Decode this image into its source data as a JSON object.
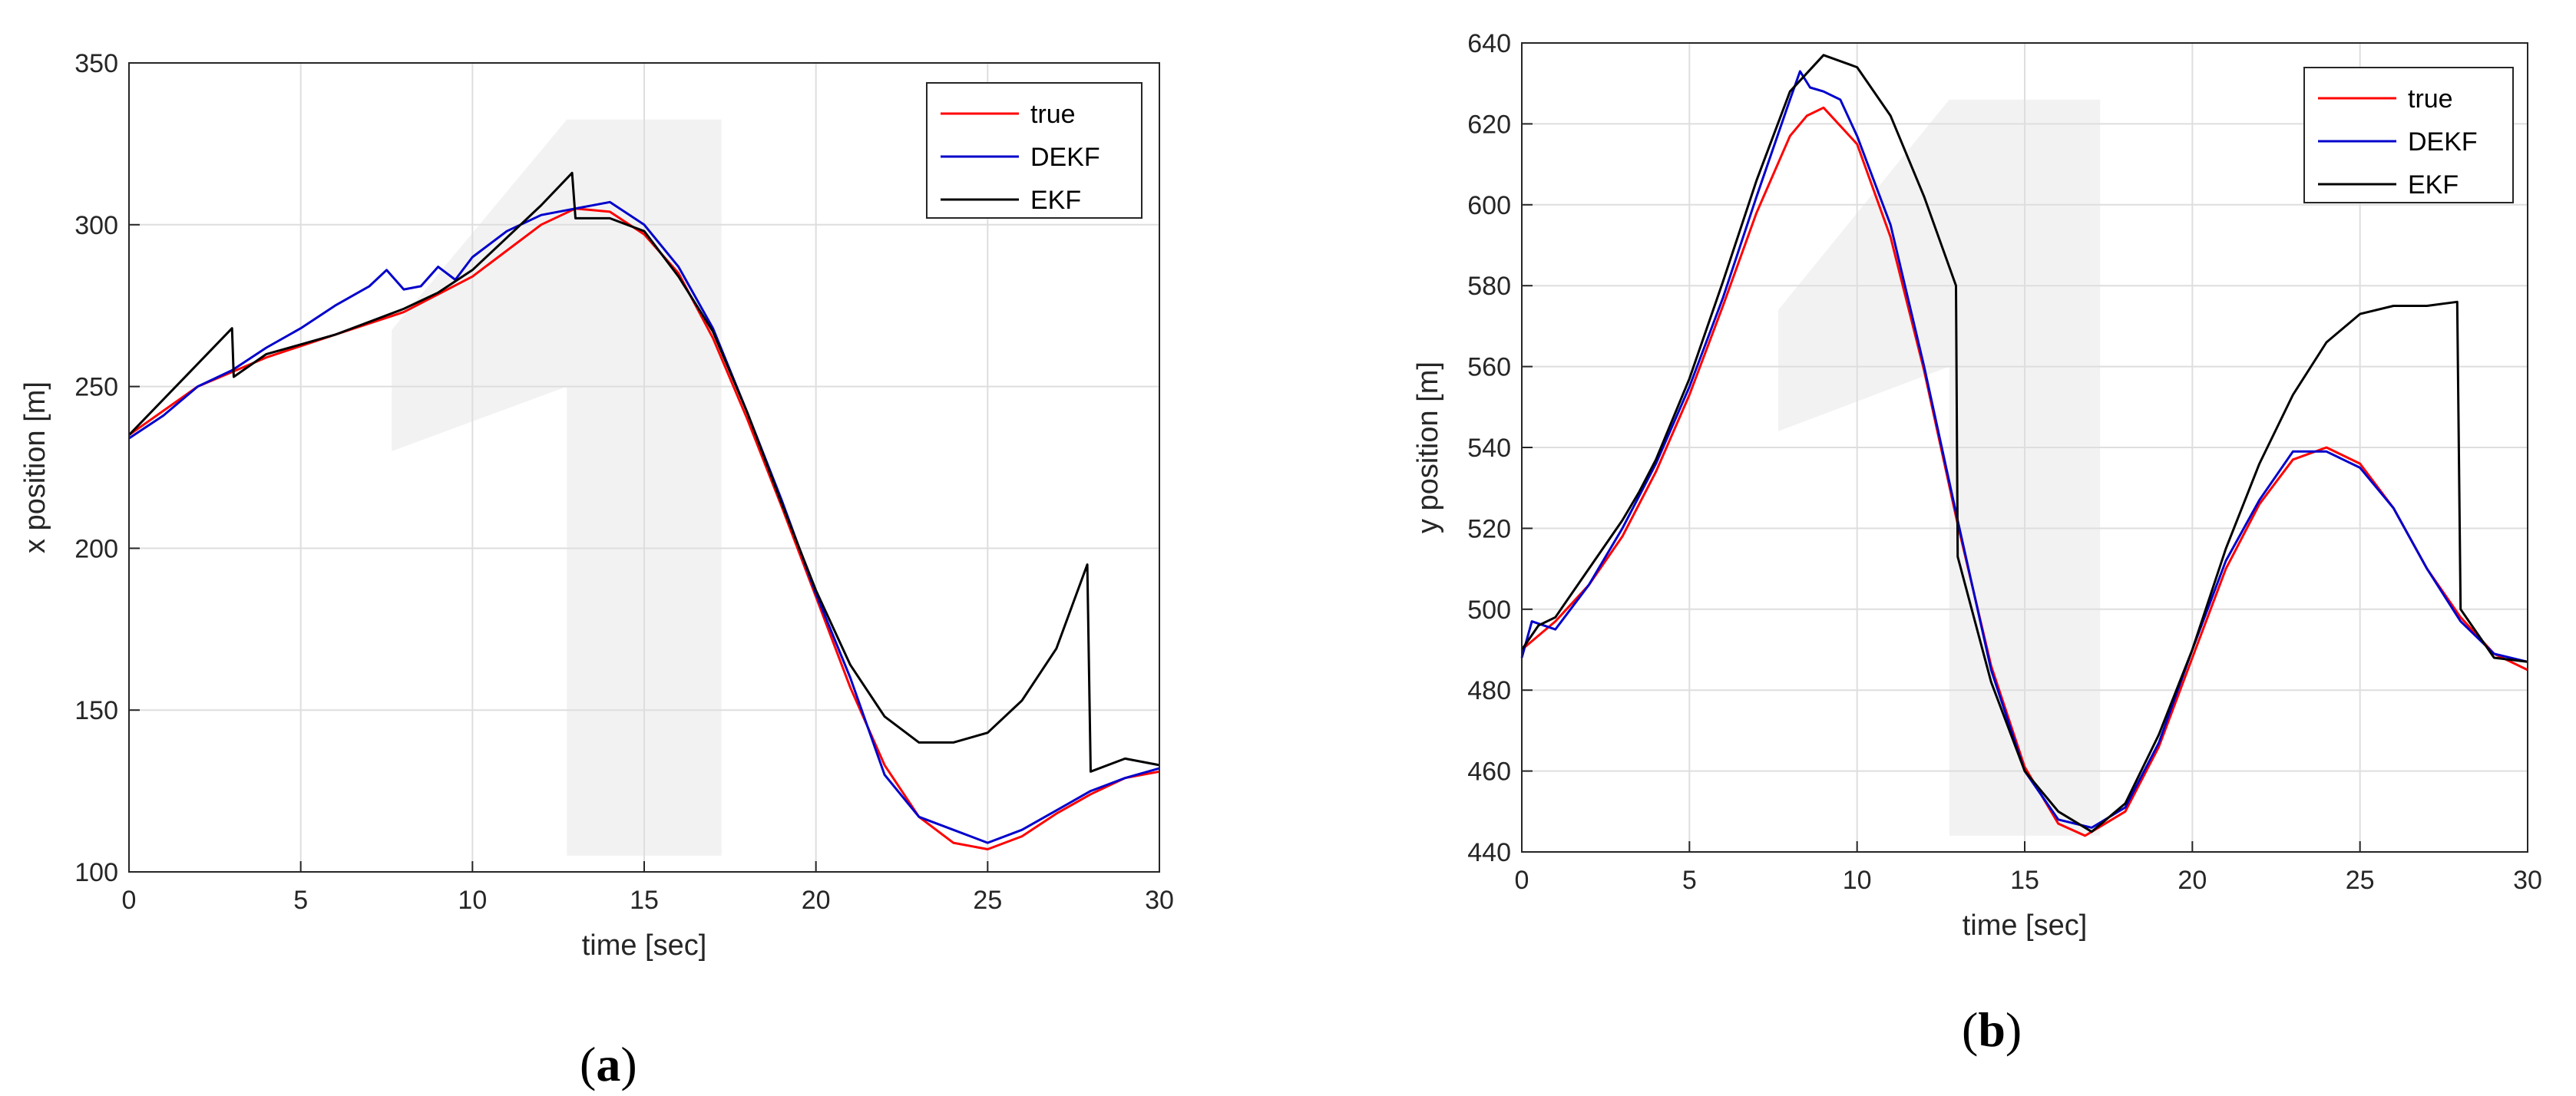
{
  "figure_labels": [
    "a",
    "b"
  ],
  "chart_data": [
    {
      "type": "line",
      "panel": "a",
      "xlabel": "time [sec]",
      "ylabel": "x position [m]",
      "xlim": [
        0,
        30
      ],
      "ylim": [
        100,
        350
      ],
      "xticks": [
        0,
        5,
        10,
        15,
        20,
        25,
        30
      ],
      "yticks": [
        100,
        150,
        200,
        250,
        300,
        350
      ],
      "grid": true,
      "legend": "top-right",
      "series": [
        {
          "name": "true",
          "color": "#ff0000",
          "points": [
            [
              0,
              235
            ],
            [
              2,
              250
            ],
            [
              4,
              259
            ],
            [
              6,
              266
            ],
            [
              8,
              273
            ],
            [
              10,
              284
            ],
            [
              11,
              292
            ],
            [
              12,
              300
            ],
            [
              13,
              305
            ],
            [
              14,
              304
            ],
            [
              15,
              297
            ],
            [
              16,
              285
            ],
            [
              17,
              265
            ],
            [
              18,
              240
            ],
            [
              19,
              213
            ],
            [
              20,
              185
            ],
            [
              21,
              157
            ],
            [
              22,
              133
            ],
            [
              23,
              117
            ],
            [
              24,
              109
            ],
            [
              25,
              107
            ],
            [
              26,
              111
            ],
            [
              27,
              118
            ],
            [
              28,
              124
            ],
            [
              29,
              129
            ],
            [
              30,
              131
            ]
          ]
        },
        {
          "name": "DEKF",
          "color": "#0000cc",
          "points": [
            [
              0,
              234
            ],
            [
              1,
              241
            ],
            [
              2,
              250
            ],
            [
              3,
              255
            ],
            [
              4,
              262
            ],
            [
              5,
              268
            ],
            [
              6,
              275
            ],
            [
              7,
              281
            ],
            [
              7.5,
              286
            ],
            [
              8,
              280
            ],
            [
              8.5,
              281
            ],
            [
              9,
              287
            ],
            [
              9.5,
              283
            ],
            [
              10,
              290
            ],
            [
              11,
              298
            ],
            [
              12,
              303
            ],
            [
              13,
              305
            ],
            [
              14,
              307
            ],
            [
              15,
              300
            ],
            [
              16,
              287
            ],
            [
              17,
              268
            ],
            [
              18,
              242
            ],
            [
              19,
              215
            ],
            [
              20,
              186
            ],
            [
              21,
              160
            ],
            [
              22,
              130
            ],
            [
              23,
              117
            ],
            [
              24,
              113
            ],
            [
              25,
              109
            ],
            [
              26,
              113
            ],
            [
              27,
              119
            ],
            [
              28,
              125
            ],
            [
              29,
              129
            ],
            [
              30,
              132
            ]
          ]
        },
        {
          "name": "EKF",
          "color": "#000000",
          "points": [
            [
              0,
              235
            ],
            [
              1,
              246
            ],
            [
              2,
              257
            ],
            [
              3,
              268
            ],
            [
              3.05,
              253
            ],
            [
              4,
              260
            ],
            [
              5,
              263
            ],
            [
              6,
              266
            ],
            [
              7,
              270
            ],
            [
              8,
              274
            ],
            [
              9,
              279
            ],
            [
              10,
              286
            ],
            [
              11,
              296
            ],
            [
              12,
              306
            ],
            [
              12.9,
              316
            ],
            [
              13,
              302
            ],
            [
              14,
              302
            ],
            [
              15,
              298
            ],
            [
              16,
              284
            ],
            [
              17,
              267
            ],
            [
              18,
              242
            ],
            [
              19,
              214
            ],
            [
              20,
              187
            ],
            [
              21,
              164
            ],
            [
              22,
              148
            ],
            [
              23,
              140
            ],
            [
              24,
              140
            ],
            [
              25,
              143
            ],
            [
              26,
              153
            ],
            [
              27,
              169
            ],
            [
              27.9,
              195
            ],
            [
              28,
              131
            ],
            [
              29,
              135
            ],
            [
              30,
              133
            ]
          ]
        }
      ]
    },
    {
      "type": "line",
      "panel": "b",
      "xlabel": "time [sec]",
      "ylabel": "y position [m]",
      "xlim": [
        0,
        30
      ],
      "ylim": [
        440,
        640
      ],
      "xticks": [
        0,
        5,
        10,
        15,
        20,
        25,
        30
      ],
      "yticks": [
        440,
        460,
        480,
        500,
        520,
        540,
        560,
        580,
        600,
        620,
        640
      ],
      "grid": true,
      "legend": "top-right",
      "series": [
        {
          "name": "true",
          "color": "#ff0000",
          "points": [
            [
              0,
              490
            ],
            [
              1,
              497
            ],
            [
              2,
              506
            ],
            [
              3,
              518
            ],
            [
              4,
              534
            ],
            [
              5,
              553
            ],
            [
              6,
              575
            ],
            [
              7,
              598
            ],
            [
              8,
              617
            ],
            [
              8.5,
              622
            ],
            [
              9,
              624
            ],
            [
              10,
              615
            ],
            [
              11,
              592
            ],
            [
              12,
              559
            ],
            [
              13,
              521
            ],
            [
              14,
              486
            ],
            [
              15,
              461
            ],
            [
              16,
              447
            ],
            [
              16.8,
              444
            ],
            [
              18,
              450
            ],
            [
              19,
              466
            ],
            [
              20,
              488
            ],
            [
              21,
              510
            ],
            [
              22,
              526
            ],
            [
              23,
              537
            ],
            [
              24,
              540
            ],
            [
              25,
              536
            ],
            [
              26,
              525
            ],
            [
              27,
              510
            ],
            [
              28,
              498
            ],
            [
              29,
              489
            ],
            [
              30,
              485
            ]
          ]
        },
        {
          "name": "DEKF",
          "color": "#0000cc",
          "points": [
            [
              0,
              488
            ],
            [
              0.3,
              497
            ],
            [
              1,
              495
            ],
            [
              2,
              506
            ],
            [
              3,
              520
            ],
            [
              4,
              536
            ],
            [
              5,
              555
            ],
            [
              6,
              577
            ],
            [
              7,
              602
            ],
            [
              8,
              626
            ],
            [
              8.3,
              633
            ],
            [
              8.6,
              629
            ],
            [
              9,
              628
            ],
            [
              9.5,
              626
            ],
            [
              10,
              617
            ],
            [
              11,
              595
            ],
            [
              12,
              560
            ],
            [
              13,
              522
            ],
            [
              14,
              485
            ],
            [
              15,
              460
            ],
            [
              16,
              448
            ],
            [
              17,
              446
            ],
            [
              18,
              451
            ],
            [
              19,
              467
            ],
            [
              20,
              490
            ],
            [
              21,
              512
            ],
            [
              22,
              527
            ],
            [
              23,
              539
            ],
            [
              24,
              539
            ],
            [
              25,
              535
            ],
            [
              26,
              525
            ],
            [
              27,
              510
            ],
            [
              28,
              497
            ],
            [
              29,
              489
            ],
            [
              30,
              487
            ]
          ]
        },
        {
          "name": "EKF",
          "color": "#000000",
          "points": [
            [
              0,
              490
            ],
            [
              0.5,
              496
            ],
            [
              1,
              498
            ],
            [
              2,
              510
            ],
            [
              3,
              522
            ],
            [
              3.5,
              529
            ],
            [
              4,
              537
            ],
            [
              5,
              557
            ],
            [
              6,
              581
            ],
            [
              7,
              606
            ],
            [
              8,
              628
            ],
            [
              9,
              637
            ],
            [
              10,
              634
            ],
            [
              11,
              622
            ],
            [
              12,
              602
            ],
            [
              12.95,
              580
            ],
            [
              13,
              513
            ],
            [
              14,
              482
            ],
            [
              15,
              460
            ],
            [
              16,
              450
            ],
            [
              17,
              445
            ],
            [
              18,
              452
            ],
            [
              19,
              469
            ],
            [
              20,
              490
            ],
            [
              21,
              515
            ],
            [
              22,
              536
            ],
            [
              23,
              553
            ],
            [
              24,
              566
            ],
            [
              25,
              573
            ],
            [
              26,
              575
            ],
            [
              27,
              575
            ],
            [
              27.9,
              576
            ],
            [
              28,
              500
            ],
            [
              29,
              488
            ],
            [
              30,
              487
            ]
          ]
        }
      ]
    }
  ]
}
